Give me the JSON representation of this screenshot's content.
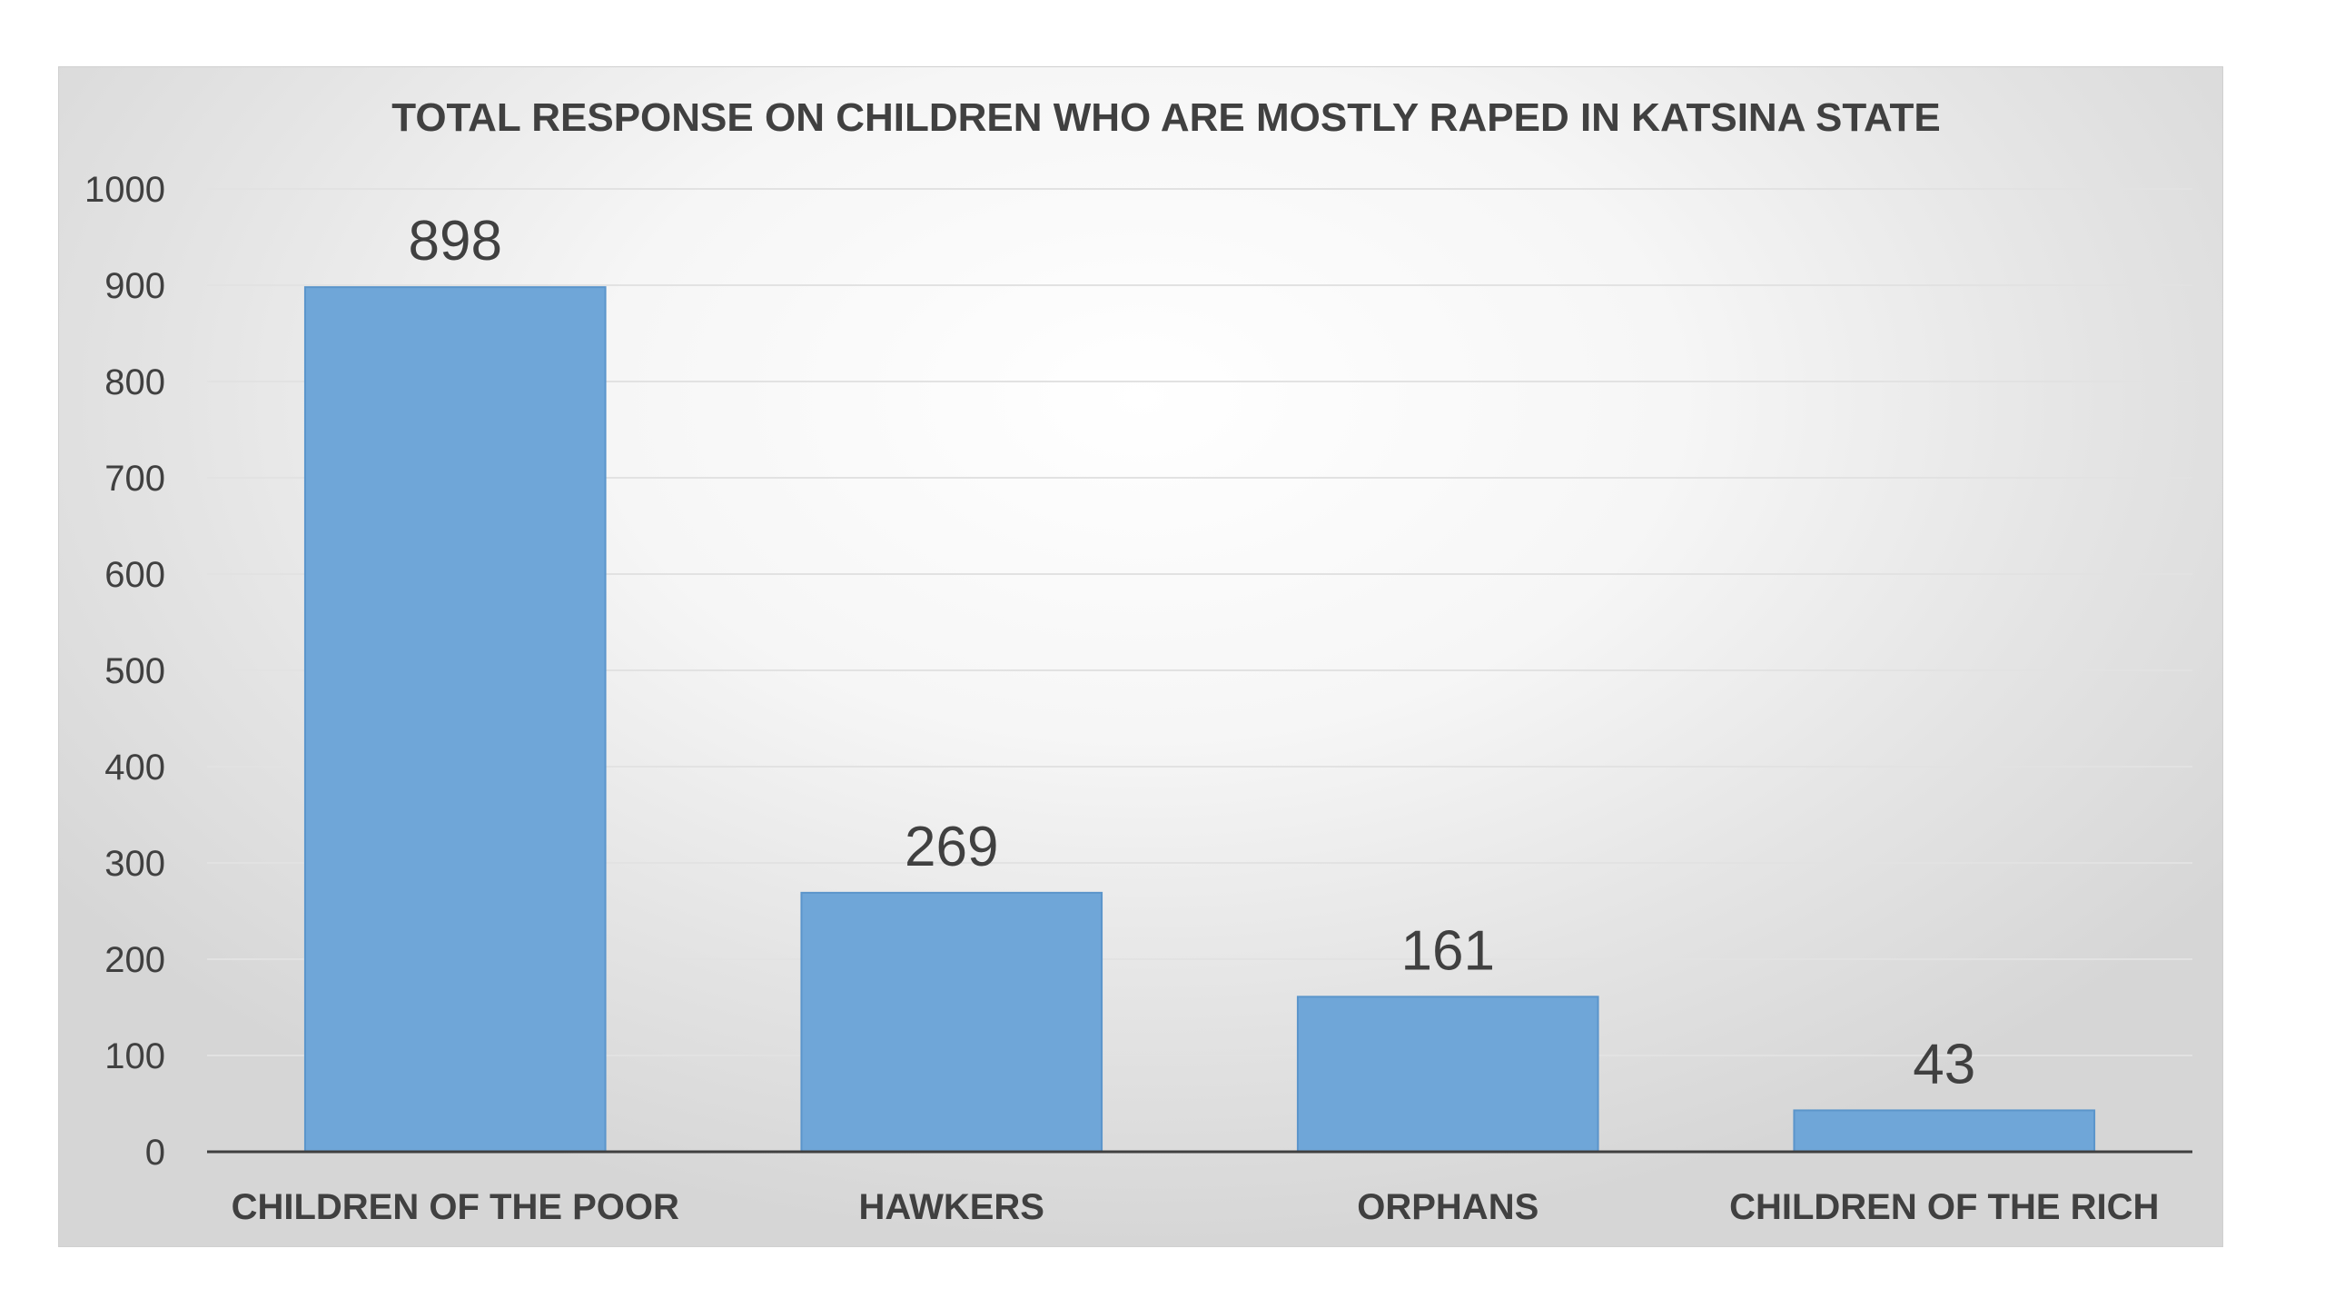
{
  "chart_data": {
    "type": "bar",
    "title": "TOTAL RESPONSE ON CHILDREN WHO ARE MOSTLY RAPED IN KATSINA STATE",
    "categories": [
      "CHILDREN OF THE POOR",
      "HAWKERS",
      "ORPHANS",
      "CHILDREN OF THE RICH"
    ],
    "values": [
      898,
      269,
      161,
      43
    ],
    "ylim": [
      0,
      1000
    ],
    "yticks": [
      0,
      100,
      200,
      300,
      400,
      500,
      600,
      700,
      800,
      900,
      1000
    ],
    "xlabel": "",
    "ylabel": "",
    "grid": true,
    "legend": "none",
    "data_labels": true,
    "bar_color": "#6fa6d8",
    "bar_edge_color": "#5b95cb"
  }
}
